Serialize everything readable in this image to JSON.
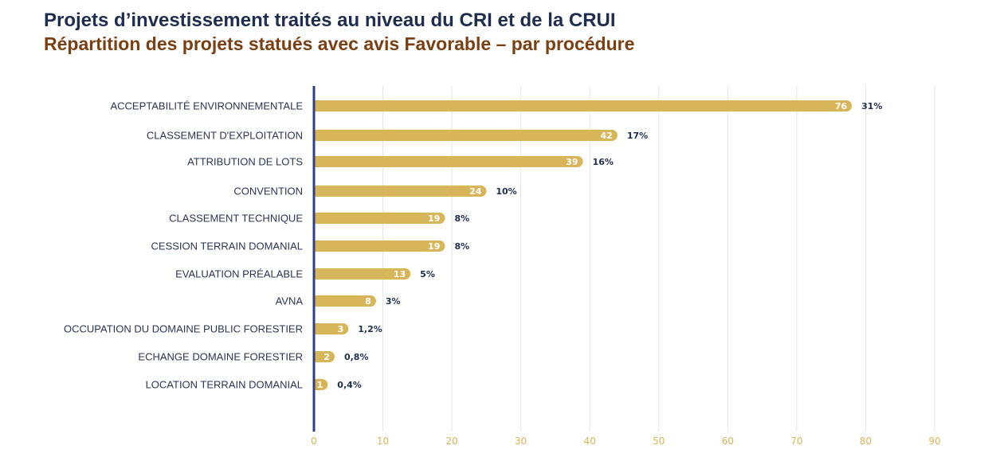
{
  "header": {
    "title": "Projets d’investissement traités au niveau du CRI et de la CRUI",
    "subtitle": "Répartition des projets statués avec avis Favorable – par procédure"
  },
  "colors": {
    "bar": "#d9b55a",
    "axis": "#2f3f86",
    "grid": "#e3e6ef",
    "title": "#1f2d4f",
    "subtitle": "#7a3f12"
  },
  "chart_data": {
    "type": "bar",
    "orientation": "horizontal",
    "categories": [
      "ACCEPTABILITÉ ENVIRONNEMENTALE",
      "CLASSEMENT D'EXPLOITATION",
      "ATTRIBUTION DE LOTS",
      "CONVENTION",
      "CLASSEMENT TECHNIQUE",
      "CESSION TERRAIN DOMANIAL",
      "EVALUATION PRÉALABLE",
      "AVNA",
      "OCCUPATION DU DOMAINE PUBLIC FORESTIER",
      "ECHANGE DOMAINE FORESTIER",
      "LOCATION TERRAIN DOMANIAL"
    ],
    "values": [
      76,
      42,
      39,
      24,
      19,
      19,
      13,
      8,
      3,
      2,
      1
    ],
    "value_labels": [
      "76",
      "42",
      "39",
      "24",
      "19",
      "19",
      "13",
      "8",
      "3",
      "2",
      "1"
    ],
    "percent_labels": [
      "31%",
      "17%",
      "16%",
      "10%",
      "8%",
      "8%",
      "5%",
      "3%",
      "1,2%",
      "0,8%",
      "0,4%"
    ],
    "bar_ends": [
      78,
      44,
      39,
      25,
      19,
      19,
      14,
      9,
      5,
      3,
      2
    ],
    "xlim": [
      0,
      90
    ],
    "xticks": [
      0,
      10,
      20,
      30,
      40,
      50,
      60,
      70,
      80,
      90
    ],
    "grid": true,
    "legend": "none"
  }
}
